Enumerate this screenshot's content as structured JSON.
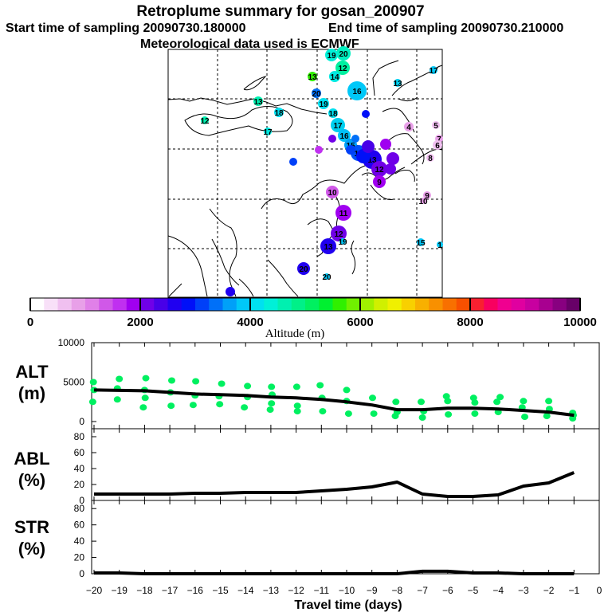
{
  "header": {
    "title": "Retroplume summary for gosan_200907",
    "start_label": "Start time of sampling 20090730.180000",
    "end_label": "End time of sampling 20090730.210000",
    "met_label": "Meteorological data used is ECMWF"
  },
  "colorbar": {
    "ticks": [
      "0",
      "2000",
      "4000",
      "6000",
      "8000",
      "10000"
    ],
    "label": "Altitude (m)",
    "colors": [
      "#ffffff",
      "#f8e0f8",
      "#f0c0f0",
      "#e8a0e8",
      "#e080e8",
      "#d058e8",
      "#c030f0",
      "#a000f0",
      "#7000e8",
      "#4800e8",
      "#2000f0",
      "#0010f8",
      "#0040f8",
      "#0070f8",
      "#00a0f8",
      "#00c8f8",
      "#00e0f0",
      "#00f0d8",
      "#00f0b0",
      "#00f088",
      "#00f060",
      "#00f030",
      "#30f000",
      "#70f000",
      "#a0f000",
      "#d0f000",
      "#f0f000",
      "#f8d000",
      "#f8b000",
      "#f89000",
      "#f87000",
      "#f85000",
      "#f82030",
      "#f80060",
      "#f00090",
      "#e000a0",
      "#c800a0",
      "#a80090",
      "#880080",
      "#680068"
    ]
  },
  "map": {
    "markers": [
      {
        "label": "20",
        "color": "#00f0c0"
      },
      {
        "label": "19",
        "color": "#00f0d8"
      },
      {
        "label": "12",
        "color": "#00f0a0"
      },
      {
        "label": "14",
        "color": "#00e8e0"
      },
      {
        "label": "16",
        "color": "#00c8f8"
      },
      {
        "label": "20",
        "color": "#0070f8"
      },
      {
        "label": "19",
        "color": "#00e0f0"
      },
      {
        "label": "18",
        "color": "#00e0f0"
      },
      {
        "label": "17",
        "color": "#00d0f0"
      },
      {
        "label": "16",
        "color": "#00c0f8"
      },
      {
        "label": "15",
        "color": "#00a0f8"
      },
      {
        "label": "14",
        "color": "#0050f8"
      },
      {
        "label": "13",
        "color": "#2000f0"
      },
      {
        "label": "12",
        "color": "#7000e8"
      },
      {
        "label": "9",
        "color": "#a000f0"
      },
      {
        "label": "10",
        "color": "#d058e8"
      },
      {
        "label": "11",
        "color": "#a000f0"
      },
      {
        "label": "12",
        "color": "#7000e8"
      },
      {
        "label": "13",
        "color": "#2000f0"
      },
      {
        "label": "13",
        "color": "#30f000"
      },
      {
        "label": "13",
        "color": "#00f0b0"
      },
      {
        "label": "12",
        "color": "#00f0b0"
      },
      {
        "label": "18",
        "color": "#00e0f0"
      },
      {
        "label": "17",
        "color": "#00e8e0"
      },
      {
        "label": "13",
        "color": "#00d0f0"
      },
      {
        "label": "17",
        "color": "#00c8f8"
      },
      {
        "label": "4",
        "color": "#e8a0e8"
      },
      {
        "label": "5",
        "color": "#f0c0f0"
      },
      {
        "label": "7",
        "color": "#e8a0e8"
      },
      {
        "label": "6",
        "color": "#f0c0f0"
      },
      {
        "label": "8",
        "color": "#f0c0f0"
      },
      {
        "label": "9",
        "color": "#e8a0e8"
      },
      {
        "label": "10",
        "color": "#e8a0e8"
      },
      {
        "label": "15",
        "color": "#00c8f8"
      },
      {
        "label": "1",
        "color": "#00c8f8"
      },
      {
        "label": "19",
        "color": "#00c8f8"
      },
      {
        "label": "20",
        "color": "#00c8f8"
      },
      {
        "label": "20",
        "color": "#2000f0"
      },
      {
        "label": "",
        "color": "#2000f0"
      },
      {
        "label": "",
        "color": "#0040f8"
      },
      {
        "label": "",
        "color": "#c030f0"
      },
      {
        "label": "",
        "color": "#7000e8"
      },
      {
        "label": "",
        "color": "#0040f8"
      },
      {
        "label": "",
        "color": "#0010f8"
      },
      {
        "label": "",
        "color": "#4800e8"
      },
      {
        "label": "",
        "color": "#7000e8"
      },
      {
        "label": "",
        "color": "#0070f8"
      },
      {
        "label": "",
        "color": "#a000f0"
      },
      {
        "label": "",
        "color": "#7000e8"
      },
      {
        "label": "",
        "color": "#0010f8"
      }
    ]
  },
  "panels": {
    "alt": {
      "title_line1": "ALT",
      "title_line2": "(m)",
      "yticks": [
        "0",
        "5000",
        "10000"
      ]
    },
    "abl": {
      "title_line1": "ABL",
      "title_line2": "(%)",
      "yticks": [
        "0",
        "20",
        "40",
        "60",
        "80"
      ]
    },
    "str": {
      "title_line1": "STR",
      "title_line2": "(%)",
      "yticks": [
        "0",
        "20",
        "40",
        "60",
        "80"
      ]
    }
  },
  "xaxis": {
    "label": "Travel time (days)",
    "ticks": [
      "−20",
      "−19",
      "−18",
      "−17",
      "−16",
      "−15",
      "−14",
      "−13",
      "−12",
      "−11",
      "−10",
      "−9",
      "−8",
      "−7",
      "−6",
      "−5",
      "−4",
      "−3",
      "−2",
      "−1",
      "0"
    ]
  },
  "chart_data": [
    {
      "type": "line",
      "title": "ALT (m)",
      "xlabel": "Travel time (days)",
      "ylabel": "ALT (m)",
      "xlim": [
        -20,
        0
      ],
      "ylim": [
        0,
        10000
      ],
      "x": [
        -20,
        -19,
        -18,
        -17,
        -16,
        -15,
        -14,
        -13,
        -12,
        -11,
        -10,
        -9,
        -8,
        -7,
        -6,
        -5,
        -4,
        -3,
        -2,
        -1
      ],
      "series": [
        {
          "name": "mean altitude",
          "color": "#000000",
          "values": [
            4000,
            3950,
            3900,
            3700,
            3500,
            3400,
            3300,
            3100,
            3000,
            2800,
            2500,
            2100,
            1500,
            1500,
            1700,
            1700,
            1600,
            1400,
            1200,
            800
          ]
        }
      ],
      "scatter": [
        {
          "name": "percentile altitudes",
          "color": "#00f060",
          "points": [
            [
              -20,
              4000
            ],
            [
              -20,
              5000
            ],
            [
              -20,
              2500
            ],
            [
              -19,
              4200
            ],
            [
              -19,
              5400
            ],
            [
              -19,
              2800
            ],
            [
              -18,
              4000
            ],
            [
              -18,
              5500
            ],
            [
              -18,
              3000
            ],
            [
              -18,
              1800
            ],
            [
              -17,
              3700
            ],
            [
              -17,
              5200
            ],
            [
              -17,
              2000
            ],
            [
              -16,
              3300
            ],
            [
              -16,
              5100
            ],
            [
              -16,
              2100
            ],
            [
              -15,
              3200
            ],
            [
              -15,
              4800
            ],
            [
              -15,
              2200
            ],
            [
              -14,
              3100
            ],
            [
              -14,
              4500
            ],
            [
              -14,
              1800
            ],
            [
              -13,
              3400
            ],
            [
              -13,
              4400
            ],
            [
              -13,
              2300
            ],
            [
              -13,
              1500
            ],
            [
              -12,
              4400
            ],
            [
              -12,
              2000
            ],
            [
              -12,
              1300
            ],
            [
              -11,
              3000
            ],
            [
              -11,
              4600
            ],
            [
              -11,
              1300
            ],
            [
              -10,
              2600
            ],
            [
              -10,
              4000
            ],
            [
              -10,
              1000
            ],
            [
              -9,
              3000
            ],
            [
              -9,
              1000
            ],
            [
              -8,
              1200
            ],
            [
              -8,
              2500
            ],
            [
              -8,
              700
            ],
            [
              -7,
              500
            ],
            [
              -7,
              2500
            ],
            [
              -7,
              1300
            ],
            [
              -6,
              900
            ],
            [
              -6,
              2600
            ],
            [
              -6,
              3200
            ],
            [
              -5,
              1000
            ],
            [
              -5,
              2400
            ],
            [
              -5,
              3000
            ],
            [
              -4,
              1200
            ],
            [
              -4,
              2500
            ],
            [
              -4,
              3100
            ],
            [
              -3,
              600
            ],
            [
              -3,
              1800
            ],
            [
              -3,
              2600
            ],
            [
              -2,
              700
            ],
            [
              -2,
              1600
            ],
            [
              -2,
              2600
            ],
            [
              -1,
              400
            ],
            [
              -1,
              800
            ],
            [
              -1,
              1100
            ]
          ]
        }
      ]
    },
    {
      "type": "line",
      "title": "ABL (%)",
      "xlabel": "Travel time (days)",
      "ylabel": "ABL (%)",
      "xlim": [
        -20,
        0
      ],
      "ylim": [
        0,
        90
      ],
      "x": [
        -20,
        -19,
        -18,
        -17,
        -16,
        -15,
        -14,
        -13,
        -12,
        -11,
        -10,
        -9,
        -8,
        -7,
        -6,
        -5,
        -4,
        -3,
        -2,
        -1
      ],
      "series": [
        {
          "name": "ABL fraction",
          "color": "#000000",
          "values": [
            8,
            8,
            8,
            8,
            9,
            9,
            10,
            10,
            10,
            12,
            14,
            17,
            23,
            8,
            5,
            5,
            7,
            18,
            22,
            35
          ]
        }
      ]
    },
    {
      "type": "line",
      "title": "STR (%)",
      "xlabel": "Travel time (days)",
      "ylabel": "STR (%)",
      "xlim": [
        -20,
        0
      ],
      "ylim": [
        0,
        90
      ],
      "x": [
        -20,
        -19,
        -18,
        -17,
        -16,
        -15,
        -14,
        -13,
        -12,
        -11,
        -10,
        -9,
        -8,
        -7,
        -6,
        -5,
        -4,
        -3,
        -2,
        -1
      ],
      "series": [
        {
          "name": "STR fraction",
          "color": "#000000",
          "values": [
            1,
            1,
            0,
            0,
            0,
            0,
            0,
            0,
            0,
            0,
            0,
            0,
            0,
            3,
            3,
            1,
            1,
            0,
            0,
            0
          ]
        }
      ]
    }
  ]
}
